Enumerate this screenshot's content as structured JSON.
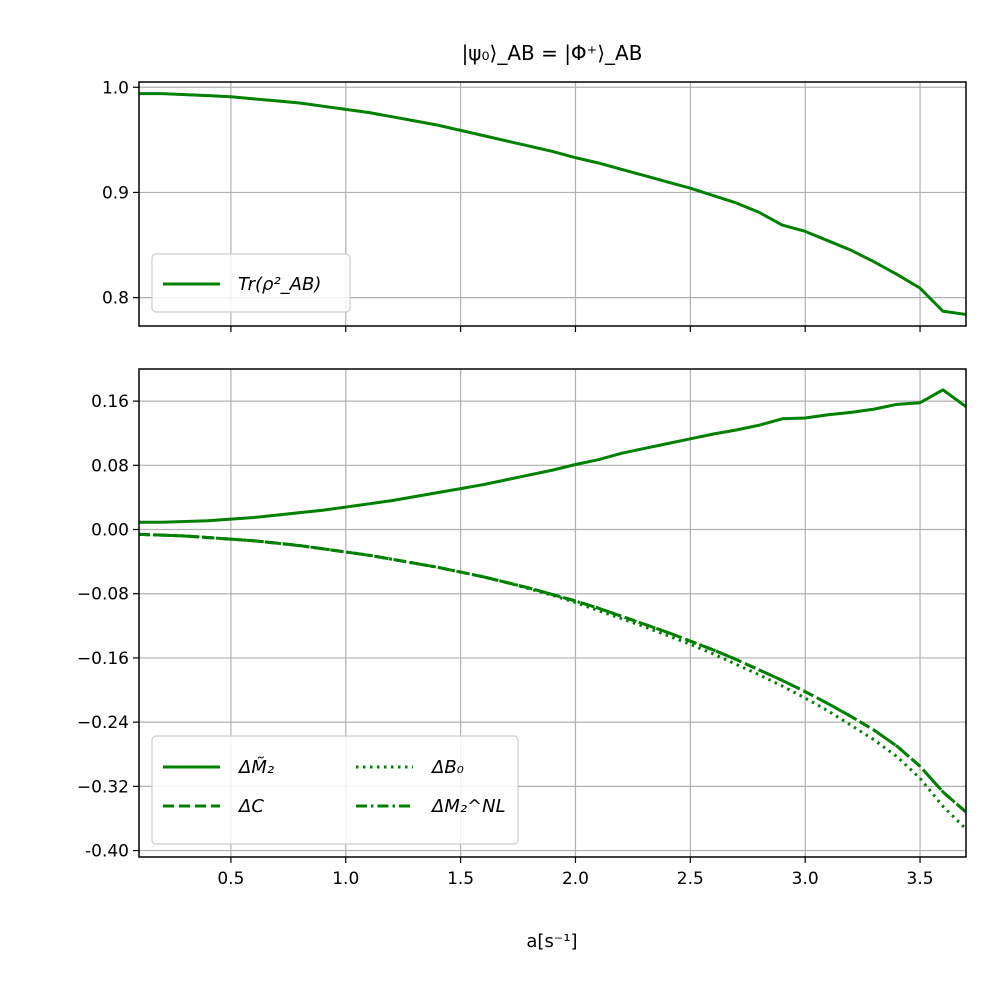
{
  "chart_data": [
    {
      "type": "line",
      "title": "|ψ₀⟩_AB = |Φ⁺⟩_AB",
      "xlim": [
        0.1,
        3.7
      ],
      "ylim": [
        0.773,
        1.005
      ],
      "yticks": [
        "0.8",
        "0.9",
        "1.0"
      ],
      "grid": true,
      "legend_position": "lower-left",
      "series": [
        {
          "name": "Tr(ρ²_AB)",
          "style": "solid",
          "color": "#008000",
          "x": [
            0.1,
            0.2,
            0.3,
            0.4,
            0.5,
            0.6,
            0.7,
            0.8,
            0.9,
            1.0,
            1.1,
            1.2,
            1.3,
            1.4,
            1.5,
            1.6,
            1.7,
            1.8,
            1.9,
            2.0,
            2.1,
            2.2,
            2.3,
            2.4,
            2.5,
            2.6,
            2.7,
            2.8,
            2.9,
            3.0,
            3.1,
            3.2,
            3.3,
            3.4,
            3.5,
            3.6,
            3.7
          ],
          "y": [
            0.994,
            0.994,
            0.993,
            0.992,
            0.991,
            0.989,
            0.987,
            0.985,
            0.982,
            0.979,
            0.976,
            0.972,
            0.968,
            0.964,
            0.959,
            0.954,
            0.949,
            0.944,
            0.939,
            0.933,
            0.928,
            0.922,
            0.916,
            0.91,
            0.904,
            0.897,
            0.89,
            0.881,
            0.869,
            0.863,
            0.854,
            0.845,
            0.834,
            0.822,
            0.809,
            0.787,
            0.784
          ]
        }
      ]
    },
    {
      "type": "line",
      "xlabel": "a[s⁻¹]",
      "xlim": [
        0.1,
        3.7
      ],
      "ylim": [
        -0.408,
        0.2
      ],
      "xticks": [
        "0.5",
        "1.0",
        "1.5",
        "2.0",
        "2.5",
        "3.0",
        "3.5"
      ],
      "yticks": [
        "0.16",
        "0.08",
        "0.00",
        "−0.08",
        "−0.16",
        "−0.24",
        "−0.32",
        "-0.40"
      ],
      "grid": true,
      "legend_position": "lower-left",
      "series": [
        {
          "name": "ΔM̃₂",
          "style": "solid",
          "color": "#008000",
          "x": [
            0.1,
            0.2,
            0.3,
            0.4,
            0.5,
            0.6,
            0.7,
            0.8,
            0.9,
            1.0,
            1.1,
            1.2,
            1.3,
            1.4,
            1.5,
            1.6,
            1.7,
            1.8,
            1.9,
            2.0,
            2.1,
            2.2,
            2.3,
            2.4,
            2.5,
            2.6,
            2.7,
            2.8,
            2.9,
            3.0,
            3.1,
            3.2,
            3.3,
            3.4,
            3.5,
            3.6,
            3.7
          ],
          "y": [
            0.009,
            0.009,
            0.01,
            0.011,
            0.013,
            0.015,
            0.018,
            0.021,
            0.024,
            0.028,
            0.032,
            0.036,
            0.041,
            0.046,
            0.051,
            0.056,
            0.062,
            0.068,
            0.074,
            0.081,
            0.087,
            0.095,
            0.101,
            0.107,
            0.113,
            0.119,
            0.124,
            0.13,
            0.138,
            0.139,
            0.143,
            0.146,
            0.15,
            0.156,
            0.158,
            0.174,
            0.153
          ]
        },
        {
          "name": "ΔC",
          "style": "dashed",
          "color": "#008000",
          "x": [
            0.1,
            0.2,
            0.3,
            0.4,
            0.5,
            0.6,
            0.7,
            0.8,
            0.9,
            1.0,
            1.1,
            1.2,
            1.3,
            1.4,
            1.5,
            1.6,
            1.7,
            1.8,
            1.9,
            2.0,
            2.1,
            2.2,
            2.3,
            2.4,
            2.5,
            2.6,
            2.7,
            2.8,
            2.9,
            3.0,
            3.1,
            3.2,
            3.3,
            3.4,
            3.5,
            3.6,
            3.7
          ],
          "y": [
            -0.006,
            -0.007,
            -0.008,
            -0.01,
            -0.012,
            -0.014,
            -0.017,
            -0.02,
            -0.024,
            -0.028,
            -0.032,
            -0.037,
            -0.042,
            -0.047,
            -0.053,
            -0.059,
            -0.066,
            -0.073,
            -0.081,
            -0.089,
            -0.098,
            -0.108,
            -0.118,
            -0.128,
            -0.139,
            -0.15,
            -0.162,
            -0.175,
            -0.188,
            -0.202,
            -0.217,
            -0.233,
            -0.25,
            -0.27,
            -0.295,
            -0.327,
            -0.352
          ]
        },
        {
          "name": "ΔB₀",
          "style": "dotted",
          "color": "#008000",
          "x": [
            0.1,
            0.2,
            0.3,
            0.4,
            0.5,
            0.6,
            0.7,
            0.8,
            0.9,
            1.0,
            1.1,
            1.2,
            1.3,
            1.4,
            1.5,
            1.6,
            1.7,
            1.8,
            1.9,
            2.0,
            2.1,
            2.2,
            2.3,
            2.4,
            2.5,
            2.6,
            2.7,
            2.8,
            2.9,
            3.0,
            3.1,
            3.2,
            3.3,
            3.4,
            3.5,
            3.6,
            3.7
          ],
          "y": [
            -0.006,
            -0.007,
            -0.008,
            -0.01,
            -0.012,
            -0.014,
            -0.017,
            -0.02,
            -0.024,
            -0.028,
            -0.032,
            -0.037,
            -0.042,
            -0.047,
            -0.053,
            -0.059,
            -0.066,
            -0.074,
            -0.082,
            -0.091,
            -0.101,
            -0.111,
            -0.121,
            -0.132,
            -0.143,
            -0.155,
            -0.168,
            -0.181,
            -0.195,
            -0.21,
            -0.226,
            -0.244,
            -0.262,
            -0.283,
            -0.31,
            -0.345,
            -0.373
          ]
        },
        {
          "name": "ΔM₂^NL",
          "style": "dashdot",
          "color": "#008000",
          "x": [
            0.1,
            0.2,
            0.3,
            0.4,
            0.5,
            0.6,
            0.7,
            0.8,
            0.9,
            1.0,
            1.1,
            1.2,
            1.3,
            1.4,
            1.5,
            1.6,
            1.7,
            1.8,
            1.9,
            2.0,
            2.1,
            2.2,
            2.3,
            2.4,
            2.5,
            2.6,
            2.7,
            2.8,
            2.9,
            3.0,
            3.1,
            3.2,
            3.3,
            3.4,
            3.5,
            3.6,
            3.7
          ],
          "y": [
            -0.006,
            -0.007,
            -0.008,
            -0.01,
            -0.012,
            -0.014,
            -0.017,
            -0.02,
            -0.024,
            -0.028,
            -0.032,
            -0.037,
            -0.042,
            -0.047,
            -0.053,
            -0.059,
            -0.066,
            -0.073,
            -0.081,
            -0.089,
            -0.098,
            -0.108,
            -0.118,
            -0.128,
            -0.139,
            -0.15,
            -0.162,
            -0.175,
            -0.188,
            -0.202,
            -0.217,
            -0.233,
            -0.25,
            -0.27,
            -0.295,
            -0.327,
            -0.352
          ]
        }
      ]
    }
  ]
}
